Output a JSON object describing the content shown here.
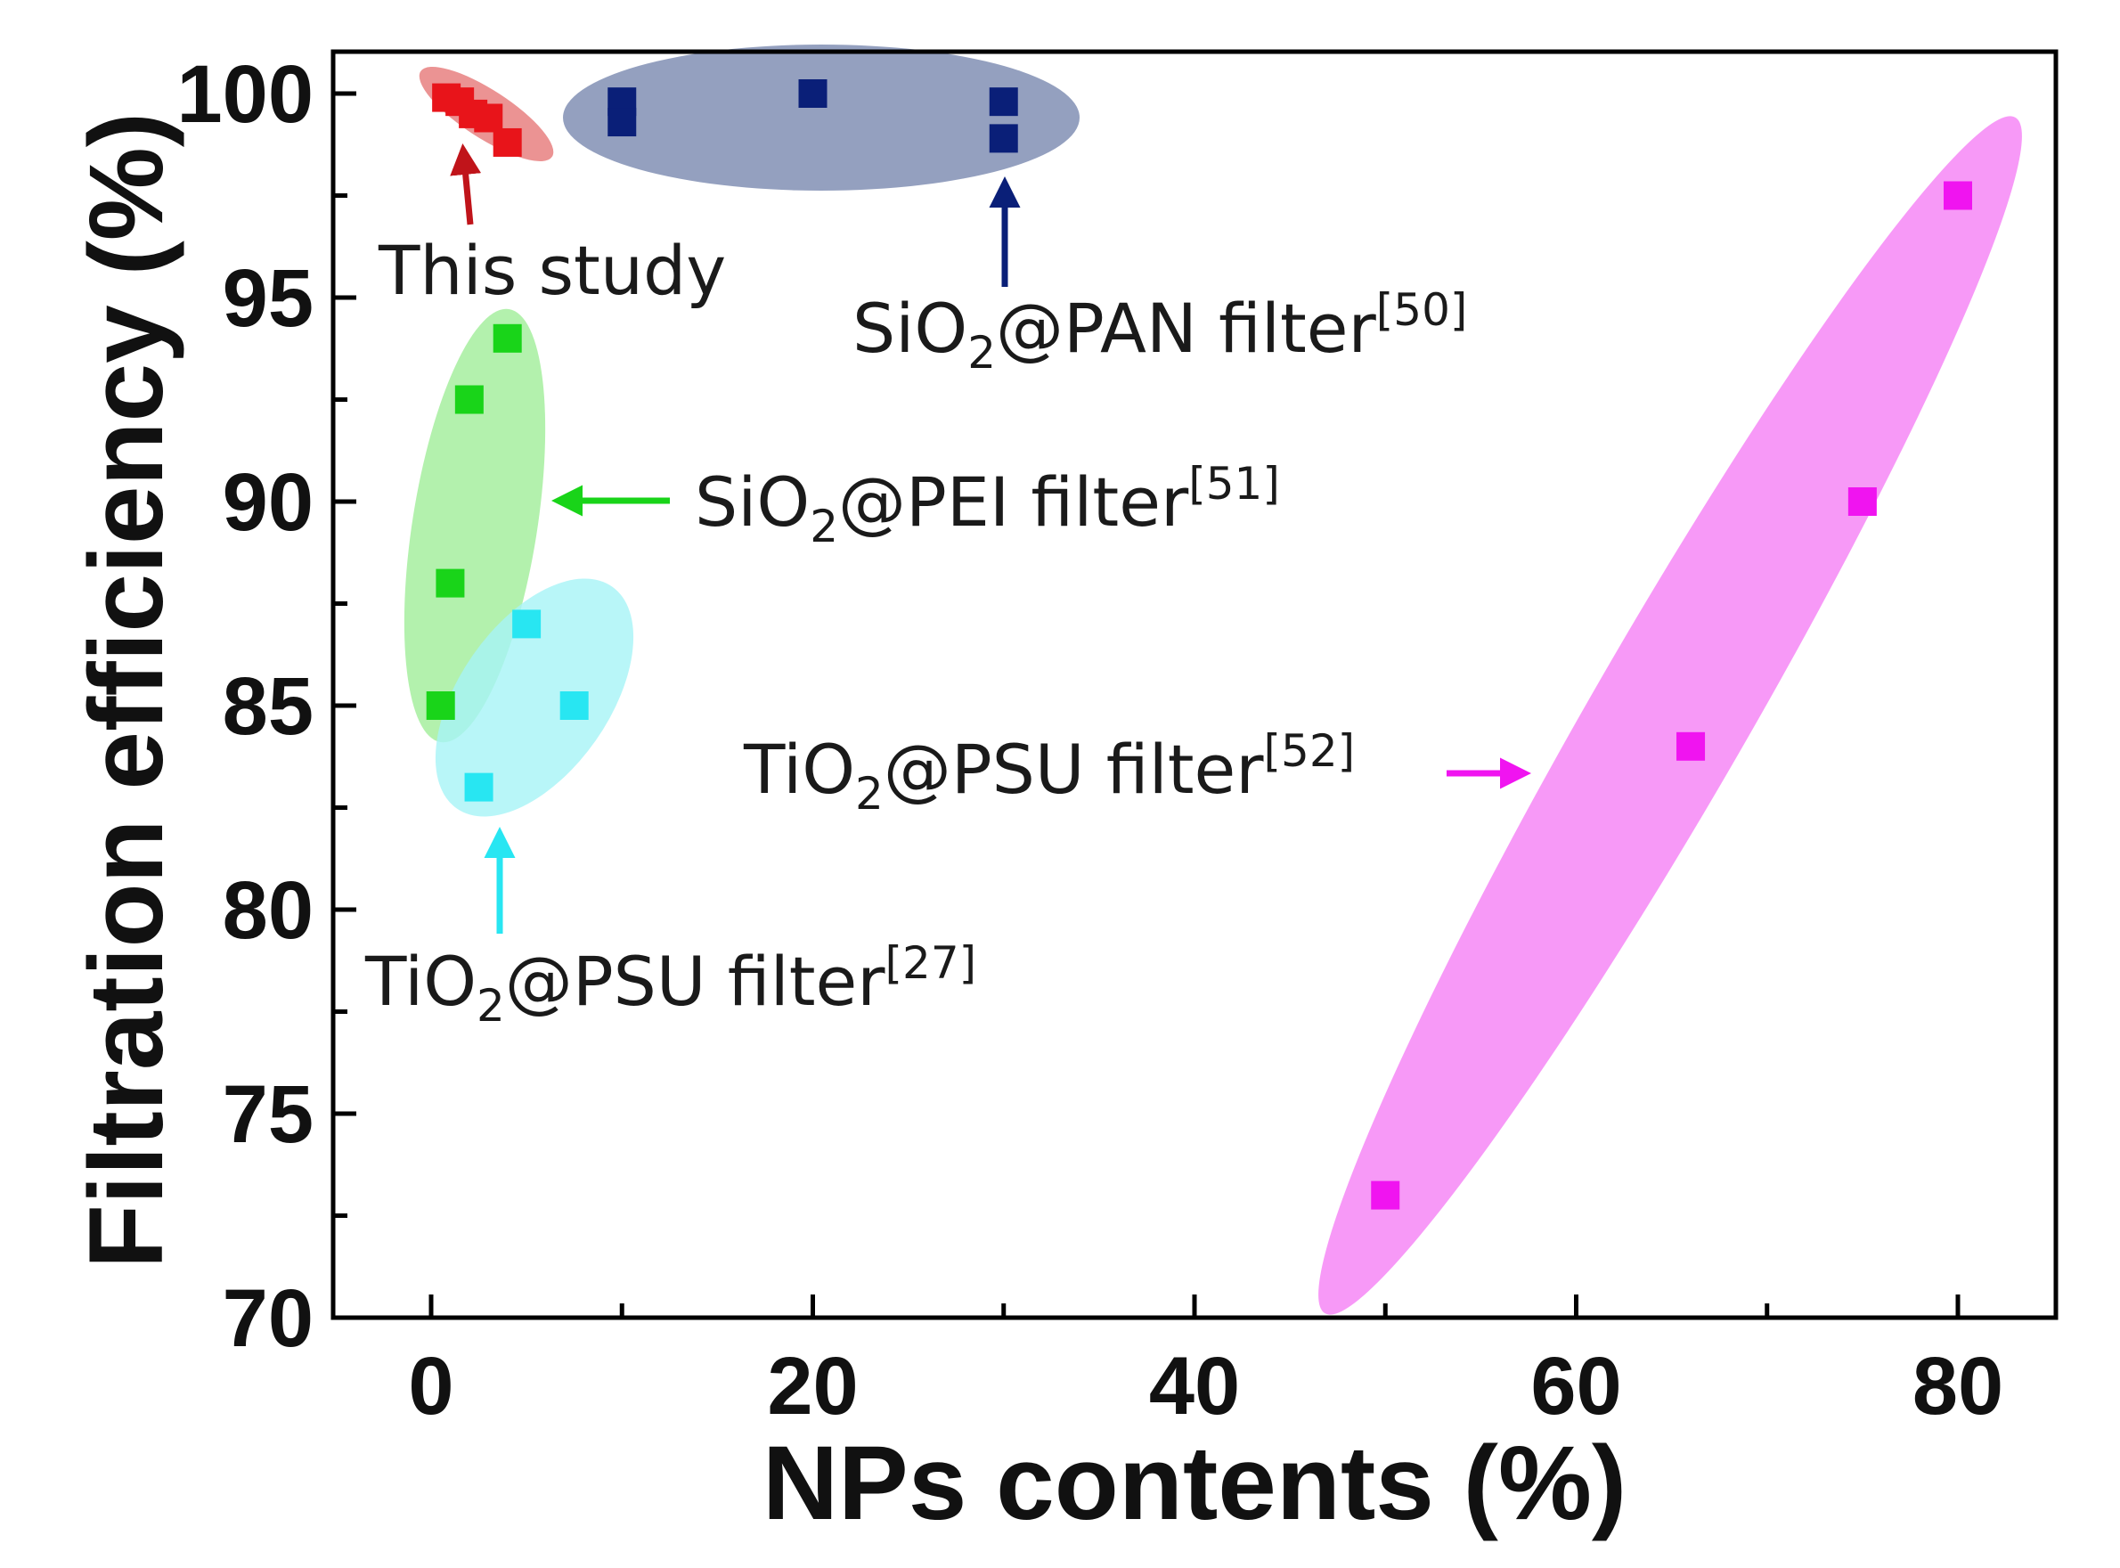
{
  "chart_data": {
    "type": "scatter",
    "title": "",
    "xlabel": "NPs contents (%)",
    "ylabel": "Filtration efficiency (%)",
    "xlim": [
      -5,
      85
    ],
    "ylim": [
      70,
      101
    ],
    "xticks": [
      0,
      20,
      40,
      60,
      80
    ],
    "yticks": [
      70,
      75,
      80,
      85,
      90,
      95,
      100
    ],
    "grid": false,
    "series": [
      {
        "name": "This study",
        "color": "#e8141a",
        "ellipse_color": "#e88080",
        "x": [
          0.8,
          1.5,
          2.2,
          3.0,
          4.0
        ],
        "y": [
          99.9,
          99.8,
          99.5,
          99.4,
          98.8
        ]
      },
      {
        "name": "SiO2@PAN filter[50]",
        "color": "#0a1f78",
        "ellipse_color": "#8896b8",
        "x": [
          10,
          10,
          20,
          30,
          30
        ],
        "y": [
          99.8,
          99.3,
          100.0,
          99.8,
          98.9
        ]
      },
      {
        "name": "SiO2@PEI filter[51]",
        "color": "#19d419",
        "ellipse_color": "#a0ee98",
        "x": [
          0.5,
          1.0,
          2.0,
          4.0
        ],
        "y": [
          85.0,
          88.0,
          92.5,
          94.0
        ]
      },
      {
        "name": "TiO2@PSU filter[27]",
        "color": "#28e6f2",
        "ellipse_color": "#a6f4f6",
        "x": [
          2.5,
          5.0,
          7.5
        ],
        "y": [
          83.0,
          87.0,
          85.0
        ]
      },
      {
        "name": "TiO2@PSU filter[52]",
        "color": "#f014f0",
        "ellipse_color": "#f68ef6",
        "x": [
          50,
          66,
          75,
          80
        ],
        "y": [
          73.0,
          84.0,
          90.0,
          97.5
        ]
      }
    ],
    "annotations": [
      {
        "id": "this-study",
        "pre": "This study",
        "sub": "",
        "mid": "",
        "sup": "",
        "arrow_color": "#c0141a"
      },
      {
        "id": "sio2-pan",
        "pre": "SiO",
        "sub": "2",
        "mid": "@PAN filter",
        "sup": "[50]",
        "arrow_color": "#0a1f78"
      },
      {
        "id": "sio2-pei",
        "pre": "SiO",
        "sub": "2",
        "mid": "@PEI filter",
        "sup": "[51]",
        "arrow_color": "#19d419"
      },
      {
        "id": "tio2-psu-27",
        "pre": "TiO",
        "sub": "2",
        "mid": "@PSU filter",
        "sup": "[27]",
        "arrow_color": "#28e6f2"
      },
      {
        "id": "tio2-psu-52",
        "pre": "TiO",
        "sub": "2",
        "mid": "@PSU filter",
        "sup": "[52]",
        "arrow_color": "#f014f0"
      }
    ]
  }
}
